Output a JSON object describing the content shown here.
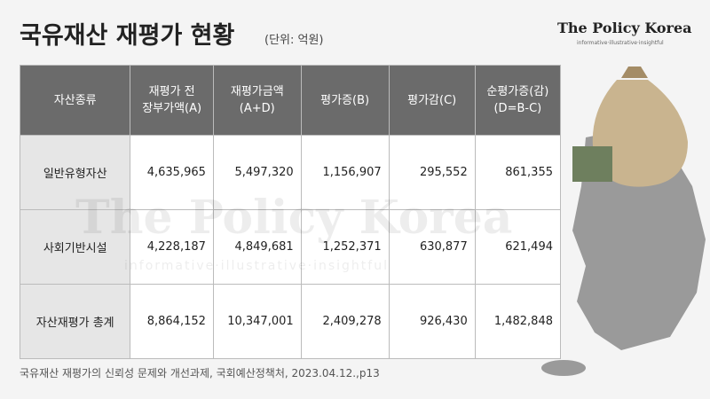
{
  "header": {
    "title": "국유재산 재평가 현황",
    "unit": "(단위: 억원)",
    "brand": "The Policy Korea",
    "tagline": "informative·illustrative·insightful"
  },
  "table": {
    "columns": [
      "자산종류",
      "재평가 전\n장부가액(A)",
      "재평가금액\n(A+D)",
      "평가증(B)",
      "평가감(C)",
      "순평가증(감)\n(D=B-C)"
    ],
    "rows": [
      [
        "일반유형자산",
        "4,635,965",
        "5,497,320",
        "1,156,907",
        "295,552",
        "861,355"
      ],
      [
        "사회기반시설",
        "4,228,187",
        "4,849,681",
        "1,252,371",
        "630,877",
        "621,494"
      ],
      [
        "자산재평가 총계",
        "8,864,152",
        "10,347,001",
        "2,409,278",
        "926,430",
        "1,482,848"
      ]
    ]
  },
  "footer": {
    "source": "국유재산 재평가의 신뢰성 문제와 개선과제, 국회예산정책처, 2023.04.12.,p13"
  }
}
